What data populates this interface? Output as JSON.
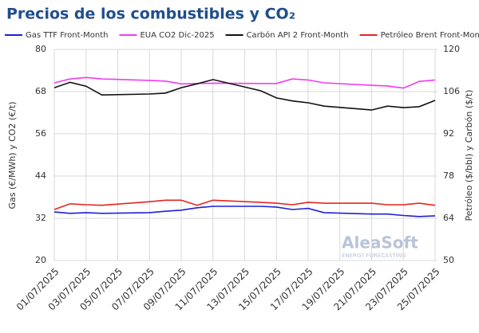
{
  "chart_data": {
    "type": "line",
    "title": "Precios de los combustibles y CO₂",
    "y_label": "Gas (€/MWh) y CO2 (€/t)",
    "y2_label": "Petróleo ($/bbl) y Carbón ($/t)",
    "watermark": "AleaSoft",
    "watermark_sub": "ENERGY FORECASTING",
    "x": [
      "01/07/2025",
      "02/07/2025",
      "03/07/2025",
      "04/07/2025",
      "07/07/2025",
      "08/07/2025",
      "09/07/2025",
      "10/07/2025",
      "11/07/2025",
      "14/07/2025",
      "15/07/2025",
      "16/07/2025",
      "17/07/2025",
      "18/07/2025",
      "21/07/2025",
      "22/07/2025",
      "23/07/2025",
      "24/07/2025",
      "25/07/2025"
    ],
    "xlim": [
      "01/07/2025",
      "25/07/2025"
    ],
    "xticks": [
      "01/07/2025",
      "03/07/2025",
      "05/07/2025",
      "07/07/2025",
      "09/07/2025",
      "11/07/2025",
      "13/07/2025",
      "15/07/2025",
      "17/07/2025",
      "19/07/2025",
      "21/07/2025",
      "23/07/2025",
      "25/07/2025"
    ],
    "ylim": [
      20,
      80
    ],
    "yticks": [
      20,
      32,
      44,
      56,
      68,
      80
    ],
    "y2lim": [
      50,
      120
    ],
    "y2ticks": [
      50,
      64,
      78,
      92,
      106,
      120
    ],
    "grid": true,
    "legend": "top",
    "series": [
      {
        "name": "Gas TTF Front-Month",
        "color": "#1f1fd6",
        "axis": "y",
        "values": [
          33.8,
          33.4,
          33.6,
          33.4,
          33.6,
          34.0,
          34.3,
          35.0,
          35.4,
          35.4,
          35.2,
          34.5,
          34.8,
          33.6,
          33.2,
          33.2,
          32.8,
          32.5,
          32.7
        ]
      },
      {
        "name": "EUA CO2 Dic-2025",
        "color": "#f03cf0",
        "axis": "y",
        "values": [
          70.5,
          71.6,
          72.0,
          71.6,
          71.2,
          71.0,
          70.2,
          70.3,
          70.4,
          70.3,
          70.3,
          71.6,
          71.3,
          70.5,
          69.8,
          69.6,
          69.0,
          70.9,
          71.3
        ]
      },
      {
        "name": "Carbón API 2 Front-Month",
        "color": "#111111",
        "axis": "y2",
        "values": [
          107.3,
          109.1,
          107.8,
          104.9,
          105.2,
          105.5,
          107.3,
          108.6,
          110.0,
          106.3,
          103.9,
          102.9,
          102.3,
          101.2,
          99.9,
          101.2,
          100.7,
          101.0,
          103.1
        ]
      },
      {
        "name": "Petróleo Brent Front-Month",
        "color": "#e8231f",
        "axis": "y2",
        "values": [
          66.9,
          68.8,
          68.5,
          68.3,
          69.5,
          70.0,
          70.0,
          68.3,
          70.0,
          69.3,
          69.0,
          68.5,
          69.3,
          69.0,
          69.0,
          68.5,
          68.5,
          69.0,
          68.3
        ]
      }
    ]
  }
}
